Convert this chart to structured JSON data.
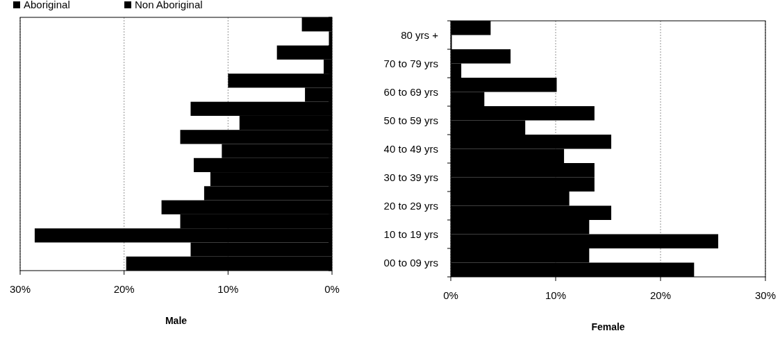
{
  "chart_data": [
    {
      "type": "bar",
      "orientation": "horizontal",
      "xlabel": "Male",
      "categories": [
        null,
        null,
        null,
        null,
        null,
        null,
        null,
        null,
        null
      ],
      "xlim": [
        30,
        0
      ],
      "xticks": [
        {
          "value": 30,
          "label": "30%"
        },
        {
          "value": 20,
          "label": "20%"
        },
        {
          "value": 10,
          "label": "10%"
        },
        {
          "value": 0,
          "label": "0%"
        }
      ],
      "grid": "x",
      "legend": "top",
      "tick_labels": "x",
      "series": [
        {
          "name": "Non Aboriginal",
          "color": "#000000",
          "values": [
            2.9,
            5.3,
            10.0,
            13.6,
            14.6,
            13.3,
            12.3,
            14.6,
            13.6
          ]
        },
        {
          "name": "Aboriginal",
          "color": "#000000",
          "values": [
            0.3,
            0.8,
            2.6,
            8.9,
            10.6,
            11.7,
            16.4,
            28.6,
            19.8
          ]
        }
      ]
    },
    {
      "type": "bar",
      "orientation": "horizontal",
      "xlabel": "Female",
      "categories": [
        "80 yrs +",
        "70 to 79 yrs",
        "60 to 69 yrs",
        "50 to 59 yrs",
        "40 to 49 yrs",
        "30 to 39 yrs",
        "20 to 29 yrs",
        "10 to 19 yrs",
        "00 to 09 yrs"
      ],
      "xlim": [
        0,
        30
      ],
      "xticks": [
        {
          "value": 0,
          "label": "0%"
        },
        {
          "value": 10,
          "label": "10%"
        },
        {
          "value": 20,
          "label": "20%"
        },
        {
          "value": 30,
          "label": "30%"
        }
      ],
      "grid": "x",
      "series": [
        {
          "color": "#000000",
          "values": [
            3.8,
            5.7,
            10.1,
            13.7,
            15.3,
            13.7,
            11.3,
            13.2,
            13.2
          ]
        },
        {
          "color": "#000000",
          "values": [
            0.1,
            1.0,
            3.2,
            7.1,
            10.8,
            13.7,
            15.3,
            25.5,
            23.2
          ]
        }
      ]
    }
  ]
}
